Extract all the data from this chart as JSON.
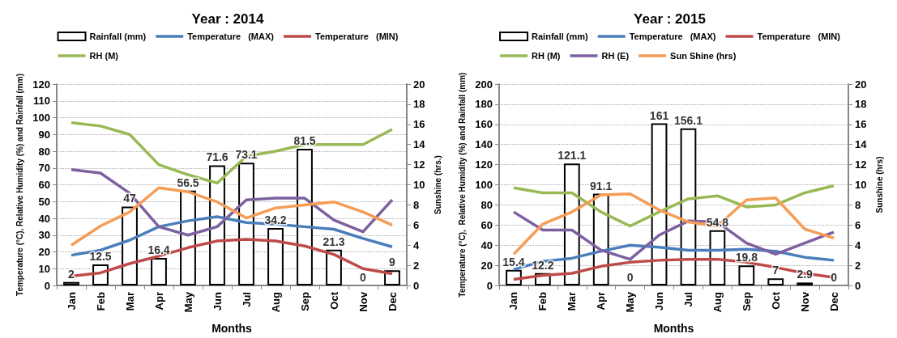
{
  "chart_data": [
    {
      "type": "bar",
      "title": "Year : 2014",
      "xlabel": "Months",
      "ylabel": "Temperature (°C), Relative Humidity (%) and Rainfall (mm)",
      "y2label": "Sunshine (hrs.)",
      "categories": [
        "Jan",
        "Feb",
        "Mar",
        "Apr",
        "May",
        "Jun",
        "Jul",
        "Aug",
        "Sep",
        "Oct",
        "Nov",
        "Dec"
      ],
      "ylim": [
        0,
        120
      ],
      "yticks": [
        0,
        10,
        20,
        30,
        40,
        50,
        60,
        70,
        80,
        90,
        100,
        110,
        120
      ],
      "y2lim": [
        0,
        20
      ],
      "y2ticks": [
        0,
        2,
        4,
        6,
        8,
        10,
        12,
        14,
        16,
        18,
        20
      ],
      "grid": "y",
      "legend": "top",
      "marker": "none",
      "series": [
        {
          "name": "Rainfall (mm)",
          "color": "#ffffff",
          "data_labels": true,
          "values": [
            2,
            12.5,
            47,
            16.4,
            56.5,
            71.6,
            73.1,
            34.2,
            81.5,
            21.3,
            0,
            9
          ]
        },
        {
          "name": "Temperature   (MAX)",
          "type": "line",
          "color": "#4a7ebb",
          "values": [
            18,
            21,
            27,
            35,
            38.5,
            41,
            37.5,
            36.5,
            35,
            33.5,
            28,
            23
          ]
        },
        {
          "name": "Temperature   (MIN)",
          "type": "line",
          "color": "#be4b48",
          "values": [
            5.5,
            7.5,
            13,
            17.5,
            22.5,
            26.5,
            27.5,
            26.5,
            23.5,
            18.5,
            10,
            7
          ]
        },
        {
          "name": "RH (M)",
          "type": "line",
          "color": "#98b954",
          "values": [
            97,
            95,
            90,
            72,
            66,
            61,
            77,
            80,
            84,
            84,
            84,
            93
          ]
        },
        {
          "type": "line",
          "color": "#7d60a0",
          "values": [
            69,
            67,
            55,
            35,
            30,
            35,
            51,
            52,
            52,
            39,
            32,
            51
          ]
        },
        {
          "type": "line",
          "axis": "y2",
          "color": "#f59d56",
          "values": [
            4.0,
            5.9,
            7.3,
            9.7,
            9.3,
            8.3,
            6.7,
            7.7,
            8.0,
            8.3,
            7.3,
            6.0
          ]
        }
      ]
    },
    {
      "type": "bar",
      "title": "Year : 2015",
      "xlabel": "Months",
      "ylabel": "Temperature (°C),  Relative Humidity (%) and Rainfall (mm)",
      "y2label": "Sunshine (hrs)",
      "categories": [
        "Jan",
        "Feb",
        "Mar",
        "Apr",
        "May",
        "Jun",
        "Jul",
        "Aug",
        "Sep",
        "Oct",
        "Nov",
        "Dec"
      ],
      "ylim": [
        0,
        200
      ],
      "yticks": [
        0,
        20,
        40,
        60,
        80,
        100,
        120,
        140,
        160,
        180,
        200
      ],
      "y2lim": [
        0,
        20
      ],
      "y2ticks": [
        0,
        2,
        4,
        6,
        8,
        10,
        12,
        14,
        16,
        18,
        20
      ],
      "grid": "y",
      "legend": "top",
      "marker": "none",
      "series": [
        {
          "name": "Rainfall (mm)",
          "color": "#ffffff",
          "data_labels": true,
          "values": [
            15.4,
            12.2,
            121.1,
            91.1,
            0,
            161,
            156.1,
            54.8,
            19.8,
            7,
            2.9,
            0
          ]
        },
        {
          "name": "Temperature   (MAX)",
          "type": "line",
          "color": "#4a7ebb",
          "values": [
            16,
            24,
            27,
            34,
            40,
            38,
            35,
            35,
            36,
            34,
            28,
            25
          ]
        },
        {
          "name": "Temperature   (MIN)",
          "type": "line",
          "color": "#be4b48",
          "values": [
            6,
            10,
            12,
            19,
            23,
            25,
            26,
            26,
            23,
            18,
            12,
            8
          ]
        },
        {
          "name": "RH (M)",
          "type": "line",
          "color": "#98b954",
          "values": [
            97,
            92,
            92,
            73,
            59,
            73,
            86,
            89,
            78,
            80,
            92,
            99
          ]
        },
        {
          "name": "RH (E)",
          "type": "line",
          "color": "#7d60a0",
          "values": [
            73,
            55,
            55,
            35,
            26,
            50,
            64,
            63,
            42,
            31,
            42,
            53
          ]
        },
        {
          "name": "Sun Shine (hrs)",
          "type": "line",
          "axis": "y2",
          "color": "#f59d56",
          "values": [
            3.1,
            6.1,
            7.3,
            9.0,
            9.1,
            7.5,
            6.3,
            5.9,
            8.5,
            8.7,
            5.6,
            4.7
          ]
        }
      ]
    }
  ]
}
